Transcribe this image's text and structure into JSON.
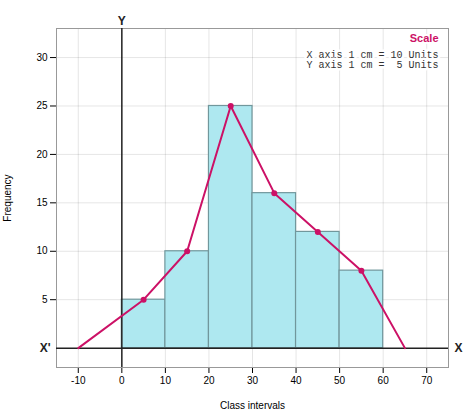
{
  "chart_data": {
    "type": "histogram",
    "xlabel": "Class intervals",
    "ylabel": "Frequency",
    "bins": [
      0,
      10,
      20,
      30,
      40,
      50,
      60
    ],
    "values": [
      5,
      10,
      25,
      16,
      12,
      8
    ],
    "color": "#aee8f0",
    "series": [
      {
        "type": "line",
        "marker": "circle",
        "color": "#cc1166",
        "x": [
          -10,
          5,
          15,
          25,
          35,
          45,
          55,
          65
        ],
        "values": [
          0,
          5,
          10,
          25,
          16,
          12,
          8,
          0
        ]
      }
    ],
    "xlim": [
      -15,
      75
    ],
    "ylim": [
      -2,
      33
    ],
    "xticks": [
      -10,
      0,
      10,
      20,
      30,
      40,
      50,
      60,
      70
    ],
    "yticks": [
      5,
      10,
      15,
      20,
      25,
      30
    ],
    "grid": true,
    "annotations": [
      "Scale",
      "X axis 1 cm = 10 Units",
      "Y axis 1 cm =  5 Units",
      "Y",
      "X",
      "X'"
    ]
  }
}
